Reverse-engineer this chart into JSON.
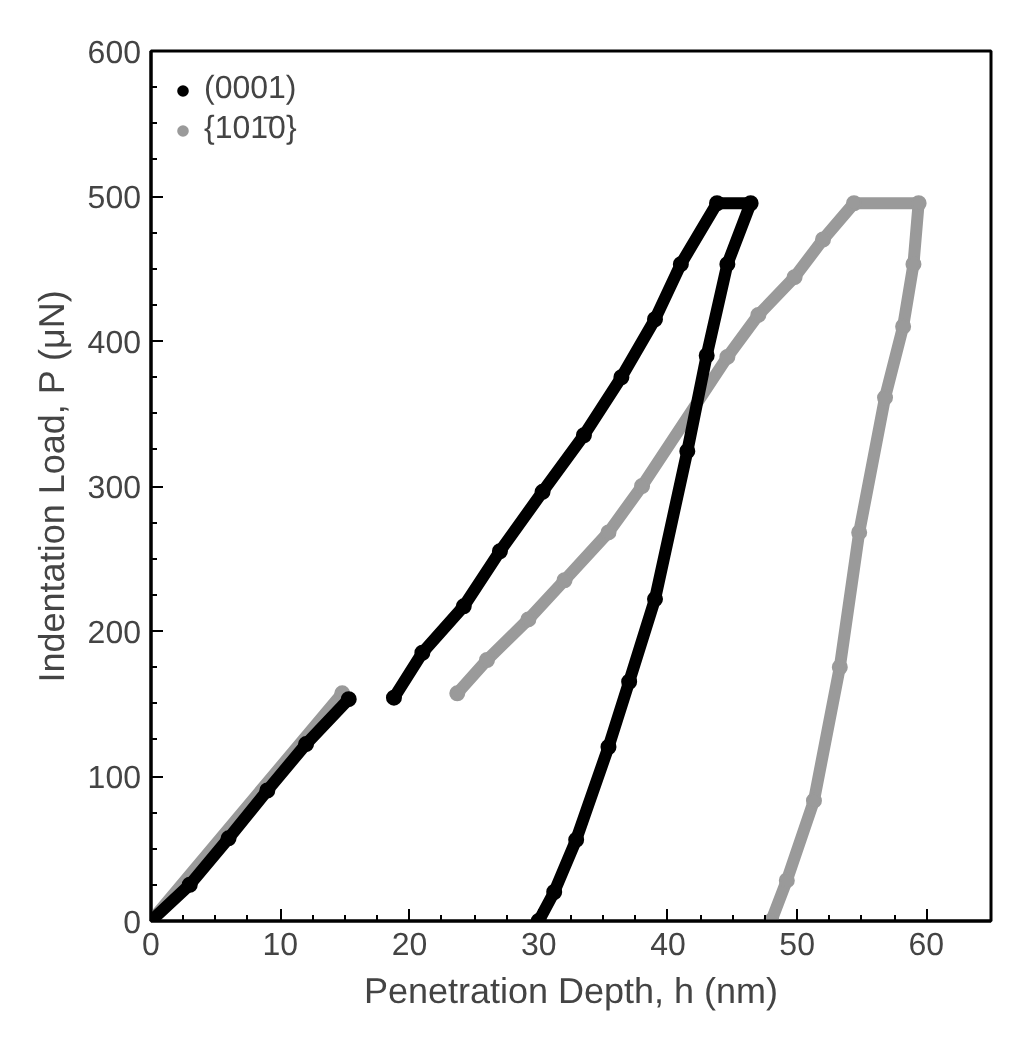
{
  "chart_data": {
    "type": "line",
    "xlabel": "Penetration Depth, h (nm)",
    "ylabel": "Indentation Load, P (μN)",
    "xlim": [
      0,
      65
    ],
    "xticks": [
      0,
      10,
      20,
      30,
      40,
      50,
      60
    ],
    "ylim": [
      0,
      600
    ],
    "yticks": [
      0,
      100,
      200,
      300,
      400,
      500,
      600
    ],
    "legend": "top left",
    "marker": "circle",
    "line_style": "solid",
    "grid": false,
    "series": [
      {
        "name": "{101̄0}",
        "color": "#9a9a9a",
        "x": [
          0,
          14.8,
          null,
          23.7,
          26,
          29.2,
          32,
          35.4,
          38,
          44.6,
          47,
          49.8,
          52,
          54.4,
          59.4,
          59,
          58.2,
          56.8,
          54.8,
          53.3,
          51.3,
          49.2,
          48
        ],
        "values": [
          0,
          157,
          null,
          157,
          180,
          208,
          235,
          268,
          300,
          389,
          418,
          444,
          470,
          495,
          495,
          453,
          410,
          361,
          268,
          175,
          83,
          28,
          0
        ]
      },
      {
        "name": "(0001)",
        "color": "#000000",
        "x": [
          0,
          3,
          6,
          9,
          12,
          15.3,
          null,
          18.8,
          21,
          24.2,
          27,
          30.3,
          33.5,
          36.4,
          39,
          41,
          43.8,
          46.4,
          44.6,
          43,
          41.5,
          39,
          37,
          35.4,
          32.9,
          31.2,
          30
        ],
        "values": [
          0,
          25,
          57,
          90,
          122,
          153,
          null,
          154,
          185,
          217,
          255,
          296,
          335,
          375,
          415,
          453,
          495,
          495,
          453,
          390,
          324,
          222,
          165,
          120,
          56,
          20,
          0
        ]
      }
    ]
  }
}
